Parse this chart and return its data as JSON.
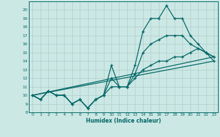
{
  "xlabel": "Humidex (Indice chaleur)",
  "ylabel": "",
  "bg_color": "#cce8e4",
  "grid_color": "#b0cccc",
  "line_color": "#006666",
  "x": [
    0,
    1,
    2,
    3,
    4,
    5,
    6,
    7,
    8,
    9,
    10,
    11,
    12,
    13,
    14,
    15,
    16,
    17,
    18,
    19,
    20,
    21,
    22,
    23
  ],
  "y_max": [
    10,
    9.5,
    10.5,
    10,
    10,
    9,
    9.5,
    8.5,
    9.5,
    10,
    13.5,
    11,
    11,
    13.5,
    17.5,
    19,
    19,
    20.5,
    19,
    19,
    17,
    16,
    15,
    14.5
  ],
  "y_min": [
    10,
    9.5,
    10.5,
    10,
    10,
    9,
    9.5,
    8.5,
    9.5,
    10,
    11,
    11,
    11,
    12,
    13,
    13.5,
    14,
    14,
    14.5,
    14.5,
    15,
    15.5,
    15,
    14
  ],
  "y_mean": [
    10,
    9.5,
    10.5,
    10,
    10,
    9,
    9.5,
    8.5,
    9.5,
    10,
    12,
    11,
    11,
    12.5,
    15,
    16,
    16.5,
    17,
    17,
    17,
    16,
    15.5,
    15,
    14.5
  ],
  "env_top_end": 14.5,
  "env_bot_end": 14.0,
  "ylim": [
    8,
    21
  ],
  "xlim": [
    -0.5,
    23.5
  ],
  "yticks": [
    8,
    9,
    10,
    11,
    12,
    13,
    14,
    15,
    16,
    17,
    18,
    19,
    20
  ],
  "xticks": [
    0,
    1,
    2,
    3,
    4,
    5,
    6,
    7,
    8,
    9,
    10,
    11,
    12,
    13,
    14,
    15,
    16,
    17,
    18,
    19,
    20,
    21,
    22,
    23
  ]
}
